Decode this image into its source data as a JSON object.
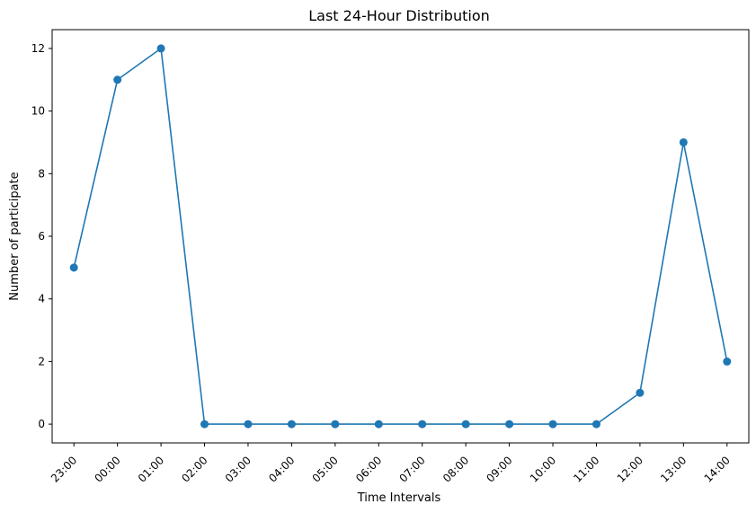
{
  "chart_data": {
    "type": "line",
    "title": "Last 24-Hour Distribution",
    "xlabel": "Time Intervals",
    "ylabel": "Number of participate",
    "categories": [
      "23:00",
      "00:00",
      "01:00",
      "02:00",
      "03:00",
      "04:00",
      "05:00",
      "06:00",
      "07:00",
      "08:00",
      "09:00",
      "10:00",
      "11:00",
      "12:00",
      "13:00",
      "14:00"
    ],
    "series": [
      {
        "values": [
          5,
          11,
          12,
          0,
          0,
          0,
          0,
          0,
          0,
          0,
          0,
          0,
          0,
          1,
          9,
          2
        ]
      }
    ],
    "ylim": [
      -0.6,
      12.6
    ],
    "yticks": [
      0,
      2,
      4,
      6,
      8,
      10,
      12
    ],
    "grid": false,
    "colors": {
      "line": "#1f77b4",
      "marker": "#1f77b4"
    }
  }
}
